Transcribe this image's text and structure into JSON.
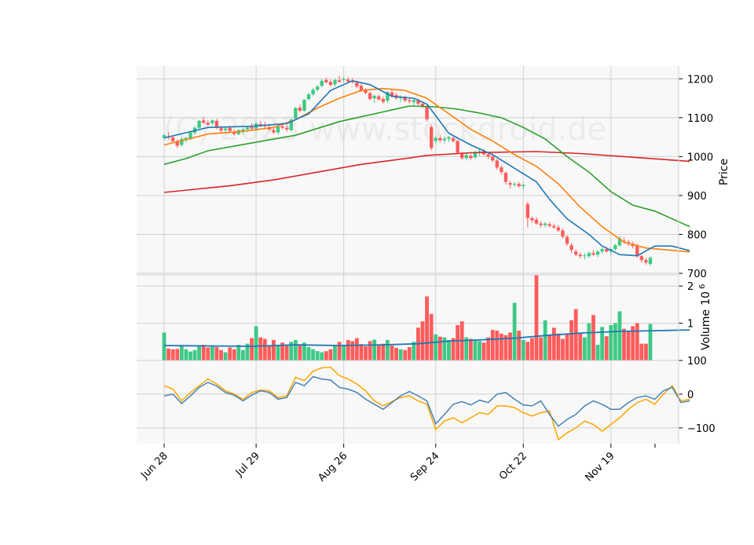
{
  "watermark": "(C) 2023 www.stockdroid.de",
  "colors": {
    "up": "#3dc985",
    "down": "#ff5c5c",
    "sma_short": "#1f77b4",
    "sma_mid": "#ff7f0e",
    "sma_long": "#2ca02c",
    "sma_longest": "#d62728",
    "vol_avg": "#1f77b4",
    "osc_fast": "#4682b4",
    "osc_slow": "#ffa500",
    "panel_bg": "#f8f8f8",
    "grid": "#d0d0d0"
  },
  "chart_data": {
    "type": "candlestick",
    "price_panel": {
      "ylabel": "Price",
      "yticks": [
        700,
        800,
        900,
        1000,
        1100,
        1200
      ],
      "ylim": [
        696,
        1233
      ]
    },
    "volume_panel": {
      "ylabel": "Volume",
      "scale_label": "10",
      "scale_exp": "6",
      "yticks": [
        1,
        2
      ],
      "ylim": [
        0,
        2.3
      ]
    },
    "oscillator_panel": {
      "yticks": [
        100,
        0,
        -100
      ],
      "ylim": [
        -147,
        100
      ]
    },
    "x_tick_labels": [
      "Jun 28",
      "Jul 29",
      "Aug 26",
      "Sep 24",
      "Oct 22",
      "Nov 19"
    ],
    "x_tick_index": [
      0,
      21,
      41,
      62,
      82,
      102
    ],
    "candles": [
      [
        1048,
        1058,
        1042,
        1055
      ],
      [
        1052,
        1063,
        1045,
        1050
      ],
      [
        1049,
        1054,
        1037,
        1040
      ],
      [
        1040,
        1044,
        1022,
        1028
      ],
      [
        1030,
        1050,
        1025,
        1045
      ],
      [
        1043,
        1052,
        1036,
        1048
      ],
      [
        1046,
        1066,
        1042,
        1062
      ],
      [
        1061,
        1078,
        1057,
        1074
      ],
      [
        1074,
        1094,
        1070,
        1092
      ],
      [
        1093,
        1102,
        1084,
        1087
      ],
      [
        1087,
        1094,
        1079,
        1082
      ],
      [
        1086,
        1096,
        1080,
        1093
      ],
      [
        1092,
        1097,
        1071,
        1074
      ],
      [
        1073,
        1079,
        1062,
        1067
      ],
      [
        1068,
        1076,
        1058,
        1072
      ],
      [
        1074,
        1079,
        1063,
        1066
      ],
      [
        1064,
        1070,
        1054,
        1058
      ],
      [
        1058,
        1071,
        1055,
        1068
      ],
      [
        1065,
        1073,
        1057,
        1070
      ],
      [
        1070,
        1080,
        1062,
        1075
      ],
      [
        1076,
        1086,
        1068,
        1072
      ],
      [
        1072,
        1088,
        1066,
        1085
      ],
      [
        1084,
        1092,
        1076,
        1080
      ],
      [
        1082,
        1090,
        1073,
        1078
      ],
      [
        1076,
        1084,
        1066,
        1070
      ],
      [
        1068,
        1075,
        1058,
        1062
      ],
      [
        1062,
        1080,
        1056,
        1078
      ],
      [
        1078,
        1088,
        1070,
        1074
      ],
      [
        1074,
        1082,
        1064,
        1070
      ],
      [
        1068,
        1098,
        1064,
        1095
      ],
      [
        1098,
        1128,
        1094,
        1125
      ],
      [
        1126,
        1134,
        1114,
        1118
      ],
      [
        1118,
        1148,
        1115,
        1146
      ],
      [
        1148,
        1164,
        1144,
        1160
      ],
      [
        1160,
        1176,
        1156,
        1172
      ],
      [
        1172,
        1184,
        1168,
        1180
      ],
      [
        1182,
        1198,
        1178,
        1195
      ],
      [
        1197,
        1203,
        1188,
        1191
      ],
      [
        1192,
        1198,
        1181,
        1184
      ],
      [
        1186,
        1200,
        1180,
        1197
      ],
      [
        1196,
        1208,
        1190,
        1192
      ],
      [
        1197,
        1205,
        1192,
        1199
      ],
      [
        1198,
        1204,
        1190,
        1193
      ],
      [
        1195,
        1202,
        1188,
        1191
      ],
      [
        1190,
        1195,
        1176,
        1180
      ],
      [
        1182,
        1188,
        1166,
        1170
      ],
      [
        1170,
        1176,
        1160,
        1164
      ],
      [
        1163,
        1168,
        1145,
        1148
      ],
      [
        1150,
        1160,
        1138,
        1156
      ],
      [
        1155,
        1160,
        1144,
        1147
      ],
      [
        1148,
        1154,
        1136,
        1141
      ],
      [
        1144,
        1168,
        1139,
        1166
      ],
      [
        1165,
        1172,
        1152,
        1156
      ],
      [
        1158,
        1164,
        1146,
        1150
      ],
      [
        1150,
        1158,
        1140,
        1154
      ],
      [
        1152,
        1157,
        1140,
        1144
      ],
      [
        1145,
        1150,
        1137,
        1142
      ],
      [
        1140,
        1148,
        1132,
        1145
      ],
      [
        1144,
        1150,
        1132,
        1136
      ],
      [
        1136,
        1142,
        1124,
        1130
      ],
      [
        1130,
        1136,
        1090,
        1096
      ],
      [
        1076,
        1082,
        1016,
        1022
      ],
      [
        1040,
        1052,
        1032,
        1048
      ],
      [
        1048,
        1056,
        1036,
        1042
      ],
      [
        1042,
        1052,
        1034,
        1046
      ],
      [
        1046,
        1053,
        1038,
        1050
      ],
      [
        1047,
        1052,
        1036,
        1040
      ],
      [
        1040,
        1044,
        1006,
        1010
      ],
      [
        1008,
        1012,
        992,
        996
      ],
      [
        996,
        1008,
        990,
        1004
      ],
      [
        1002,
        1008,
        992,
        996
      ],
      [
        998,
        1016,
        994,
        1012
      ],
      [
        1010,
        1022,
        1002,
        1014
      ],
      [
        1014,
        1020,
        1002,
        1006
      ],
      [
        1006,
        1012,
        994,
        1000
      ],
      [
        1000,
        1008,
        986,
        990
      ],
      [
        990,
        994,
        966,
        972
      ],
      [
        972,
        978,
        954,
        960
      ],
      [
        958,
        962,
        928,
        935
      ],
      [
        932,
        938,
        918,
        928
      ],
      [
        928,
        934,
        922,
        930
      ],
      [
        930,
        935,
        920,
        924
      ],
      [
        924,
        930,
        915,
        927
      ],
      [
        878,
        884,
        818,
        842
      ],
      [
        842,
        846,
        830,
        836
      ],
      [
        838,
        844,
        824,
        828
      ],
      [
        828,
        834,
        818,
        824
      ],
      [
        824,
        832,
        818,
        828
      ],
      [
        826,
        832,
        818,
        822
      ],
      [
        822,
        828,
        814,
        818
      ],
      [
        818,
        824,
        806,
        810
      ],
      [
        810,
        816,
        790,
        794
      ],
      [
        794,
        798,
        770,
        776
      ],
      [
        772,
        778,
        752,
        760
      ],
      [
        756,
        762,
        744,
        748
      ],
      [
        748,
        754,
        738,
        744
      ],
      [
        744,
        752,
        736,
        746
      ],
      [
        744,
        756,
        740,
        752
      ],
      [
        752,
        760,
        744,
        748
      ],
      [
        748,
        760,
        742,
        756
      ],
      [
        756,
        766,
        750,
        762
      ],
      [
        762,
        768,
        752,
        756
      ],
      [
        756,
        766,
        748,
        762
      ],
      [
        762,
        776,
        758,
        772
      ],
      [
        772,
        796,
        768,
        790
      ],
      [
        784,
        792,
        776,
        782
      ],
      [
        780,
        786,
        770,
        776
      ],
      [
        776,
        782,
        764,
        770
      ],
      [
        770,
        776,
        740,
        744
      ],
      [
        744,
        748,
        728,
        734
      ],
      [
        734,
        740,
        722,
        728
      ],
      [
        724,
        744,
        720,
        740
      ]
    ],
    "volume": [
      0.75,
      0.32,
      0.3,
      0.31,
      0.38,
      0.3,
      0.24,
      0.28,
      0.4,
      0.42,
      0.35,
      0.38,
      0.36,
      0.28,
      0.22,
      0.35,
      0.3,
      0.42,
      0.28,
      0.45,
      0.6,
      0.92,
      0.62,
      0.58,
      0.4,
      0.55,
      0.42,
      0.48,
      0.4,
      0.5,
      0.55,
      0.42,
      0.48,
      0.36,
      0.3,
      0.25,
      0.22,
      0.25,
      0.3,
      0.4,
      0.5,
      0.42,
      0.55,
      0.52,
      0.6,
      0.44,
      0.38,
      0.52,
      0.56,
      0.42,
      0.45,
      0.55,
      0.4,
      0.34,
      0.3,
      0.28,
      0.36,
      0.5,
      0.88,
      1.05,
      1.72,
      1.25,
      0.7,
      0.64,
      0.62,
      0.55,
      0.6,
      0.95,
      1.05,
      0.62,
      0.58,
      0.55,
      0.52,
      0.48,
      0.62,
      0.82,
      0.8,
      0.72,
      0.68,
      0.75,
      1.55,
      0.8,
      0.55,
      0.5,
      0.6,
      2.3,
      0.62,
      1.08,
      0.68,
      0.88,
      0.72,
      0.58,
      0.72,
      1.08,
      1.38,
      0.72,
      0.62,
      1.0,
      1.22,
      0.42,
      0.9,
      0.65,
      0.95,
      1.0,
      1.32,
      0.85,
      0.78,
      0.92,
      1.0,
      0.45,
      0.45,
      0.98
    ],
    "sma_short": [
      [
        0,
        1048
      ],
      [
        10,
        1075
      ],
      [
        20,
        1078
      ],
      [
        28,
        1085
      ],
      [
        33,
        1110
      ],
      [
        38,
        1170
      ],
      [
        43,
        1195
      ],
      [
        47,
        1185
      ],
      [
        52,
        1155
      ],
      [
        57,
        1150
      ],
      [
        60,
        1135
      ],
      [
        65,
        1060
      ],
      [
        70,
        1030
      ],
      [
        75,
        1005
      ],
      [
        80,
        970
      ],
      [
        85,
        935
      ],
      [
        88,
        890
      ],
      [
        92,
        840
      ],
      [
        97,
        800
      ],
      [
        100,
        770
      ],
      [
        104,
        748
      ],
      [
        108,
        745
      ],
      [
        112,
        770
      ],
      [
        116,
        770
      ],
      [
        120,
        758
      ]
    ],
    "sma_mid": [
      [
        0,
        1030
      ],
      [
        10,
        1058
      ],
      [
        18,
        1065
      ],
      [
        25,
        1075
      ],
      [
        30,
        1095
      ],
      [
        35,
        1125
      ],
      [
        40,
        1150
      ],
      [
        45,
        1170
      ],
      [
        50,
        1175
      ],
      [
        55,
        1170
      ],
      [
        60,
        1150
      ],
      [
        65,
        1110
      ],
      [
        70,
        1070
      ],
      [
        75,
        1040
      ],
      [
        80,
        1005
      ],
      [
        85,
        975
      ],
      [
        90,
        930
      ],
      [
        95,
        870
      ],
      [
        100,
        820
      ],
      [
        105,
        780
      ],
      [
        110,
        765
      ],
      [
        115,
        760
      ],
      [
        120,
        755
      ]
    ],
    "sma_long": [
      [
        0,
        980
      ],
      [
        5,
        995
      ],
      [
        10,
        1015
      ],
      [
        20,
        1035
      ],
      [
        30,
        1055
      ],
      [
        40,
        1090
      ],
      [
        50,
        1115
      ],
      [
        56,
        1130
      ],
      [
        62,
        1128
      ],
      [
        67,
        1122
      ],
      [
        72,
        1112
      ],
      [
        77,
        1100
      ],
      [
        82,
        1075
      ],
      [
        87,
        1045
      ],
      [
        92,
        1000
      ],
      [
        97,
        960
      ],
      [
        102,
        910
      ],
      [
        107,
        875
      ],
      [
        112,
        860
      ],
      [
        116,
        840
      ],
      [
        120,
        820
      ]
    ],
    "sma_longest": [
      [
        0,
        908
      ],
      [
        15,
        925
      ],
      [
        25,
        940
      ],
      [
        35,
        960
      ],
      [
        45,
        980
      ],
      [
        55,
        995
      ],
      [
        60,
        1003
      ],
      [
        70,
        1010
      ],
      [
        80,
        1012
      ],
      [
        85,
        1013
      ],
      [
        95,
        1008
      ],
      [
        105,
        1000
      ],
      [
        115,
        992
      ],
      [
        120,
        988
      ]
    ],
    "volume_avg": [
      [
        0,
        0.4
      ],
      [
        20,
        0.38
      ],
      [
        30,
        0.42
      ],
      [
        40,
        0.4
      ],
      [
        50,
        0.42
      ],
      [
        58,
        0.45
      ],
      [
        65,
        0.52
      ],
      [
        72,
        0.55
      ],
      [
        80,
        0.6
      ],
      [
        88,
        0.68
      ],
      [
        96,
        0.74
      ],
      [
        104,
        0.78
      ],
      [
        112,
        0.8
      ],
      [
        120,
        0.82
      ]
    ],
    "osc_fast": [
      [
        0,
        -5
      ],
      [
        2,
        0
      ],
      [
        4,
        -28
      ],
      [
        6,
        -5
      ],
      [
        8,
        20
      ],
      [
        10,
        35
      ],
      [
        12,
        24
      ],
      [
        14,
        5
      ],
      [
        16,
        -3
      ],
      [
        18,
        -20
      ],
      [
        20,
        -3
      ],
      [
        22,
        10
      ],
      [
        24,
        5
      ],
      [
        26,
        -15
      ],
      [
        28,
        -10
      ],
      [
        30,
        35
      ],
      [
        32,
        25
      ],
      [
        34,
        52
      ],
      [
        36,
        45
      ],
      [
        38,
        42
      ],
      [
        40,
        20
      ],
      [
        42,
        15
      ],
      [
        44,
        5
      ],
      [
        46,
        -15
      ],
      [
        48,
        -30
      ],
      [
        50,
        -45
      ],
      [
        52,
        -25
      ],
      [
        54,
        -5
      ],
      [
        56,
        8
      ],
      [
        58,
        -5
      ],
      [
        60,
        -20
      ],
      [
        62,
        -88
      ],
      [
        64,
        -60
      ],
      [
        66,
        -30
      ],
      [
        68,
        -22
      ],
      [
        70,
        -32
      ],
      [
        72,
        -18
      ],
      [
        74,
        -25
      ],
      [
        76,
        0
      ],
      [
        78,
        5
      ],
      [
        80,
        -15
      ],
      [
        82,
        -32
      ],
      [
        84,
        -35
      ],
      [
        86,
        -20
      ],
      [
        88,
        -60
      ],
      [
        90,
        -95
      ],
      [
        92,
        -75
      ],
      [
        94,
        -60
      ],
      [
        96,
        -35
      ],
      [
        98,
        -20
      ],
      [
        100,
        -30
      ],
      [
        102,
        -45
      ],
      [
        104,
        -45
      ],
      [
        106,
        -25
      ],
      [
        108,
        -10
      ],
      [
        110,
        -5
      ],
      [
        112,
        -15
      ],
      [
        114,
        10
      ],
      [
        116,
        20
      ],
      [
        118,
        -25
      ],
      [
        120,
        -20
      ]
    ],
    "osc_slow": [
      [
        0,
        25
      ],
      [
        2,
        15
      ],
      [
        4,
        -20
      ],
      [
        6,
        5
      ],
      [
        8,
        25
      ],
      [
        10,
        45
      ],
      [
        12,
        30
      ],
      [
        14,
        10
      ],
      [
        16,
        0
      ],
      [
        18,
        -15
      ],
      [
        20,
        5
      ],
      [
        22,
        12
      ],
      [
        24,
        10
      ],
      [
        26,
        -10
      ],
      [
        28,
        -5
      ],
      [
        30,
        50
      ],
      [
        32,
        40
      ],
      [
        34,
        68
      ],
      [
        36,
        78
      ],
      [
        38,
        80
      ],
      [
        40,
        55
      ],
      [
        42,
        45
      ],
      [
        44,
        30
      ],
      [
        46,
        10
      ],
      [
        48,
        -20
      ],
      [
        50,
        -35
      ],
      [
        52,
        -22
      ],
      [
        54,
        -10
      ],
      [
        56,
        -5
      ],
      [
        58,
        -20
      ],
      [
        60,
        -30
      ],
      [
        62,
        -105
      ],
      [
        64,
        -80
      ],
      [
        66,
        -70
      ],
      [
        68,
        -85
      ],
      [
        70,
        -70
      ],
      [
        72,
        -55
      ],
      [
        74,
        -60
      ],
      [
        76,
        -35
      ],
      [
        78,
        -35
      ],
      [
        80,
        -40
      ],
      [
        82,
        -55
      ],
      [
        84,
        -65
      ],
      [
        86,
        -55
      ],
      [
        88,
        -50
      ],
      [
        90,
        -135
      ],
      [
        92,
        -115
      ],
      [
        94,
        -100
      ],
      [
        96,
        -80
      ],
      [
        98,
        -90
      ],
      [
        100,
        -110
      ],
      [
        102,
        -90
      ],
      [
        104,
        -70
      ],
      [
        106,
        -45
      ],
      [
        108,
        -25
      ],
      [
        110,
        -15
      ],
      [
        112,
        -30
      ],
      [
        114,
        0
      ],
      [
        116,
        25
      ],
      [
        118,
        -20
      ],
      [
        120,
        -15
      ]
    ]
  }
}
